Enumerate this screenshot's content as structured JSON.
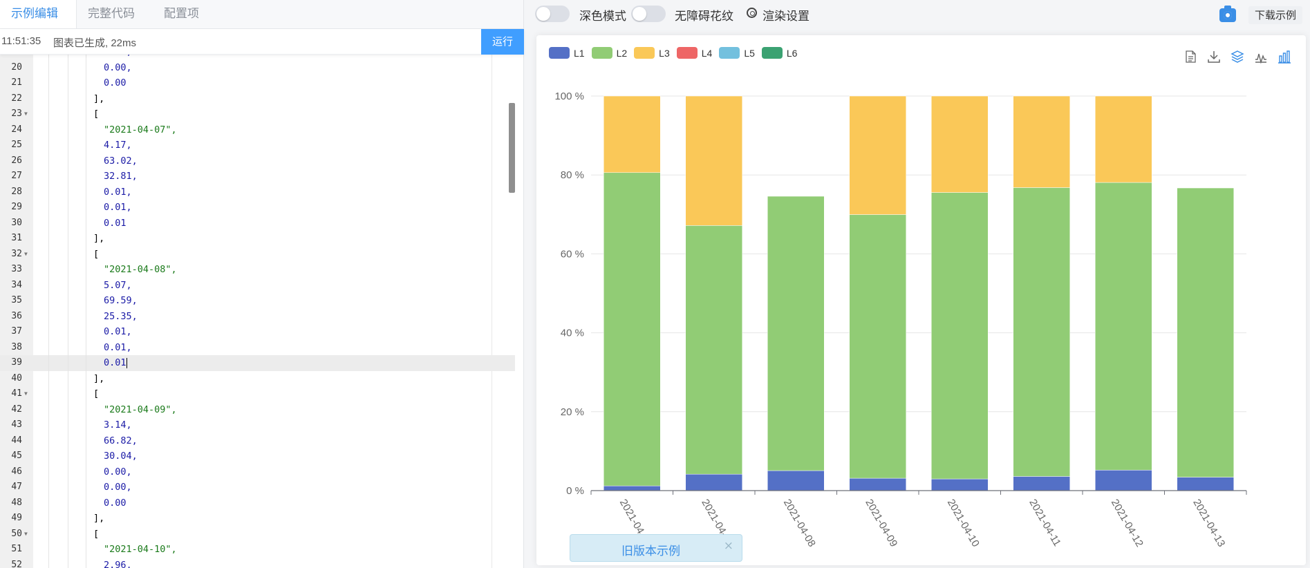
{
  "tabs": [
    {
      "label": "示例编辑",
      "active": true
    },
    {
      "label": "完整代码",
      "active": false
    },
    {
      "label": "配置项",
      "active": false
    }
  ],
  "status": {
    "time": "11:51:35",
    "message": "图表已生成, 22ms"
  },
  "run_label": "运行",
  "editor": {
    "lines": [
      {
        "n": "19",
        "text": "0.00,",
        "kind": "num",
        "indent": 2
      },
      {
        "n": "20",
        "text": "0.00,",
        "kind": "num",
        "indent": 2
      },
      {
        "n": "21",
        "text": "0.00",
        "kind": "num",
        "indent": 2
      },
      {
        "n": "22",
        "text": "],",
        "kind": "punct",
        "indent": 1
      },
      {
        "n": "23",
        "text": "[",
        "kind": "punct",
        "indent": 1,
        "fold": true
      },
      {
        "n": "24",
        "text": "\"2021-04-07\",",
        "kind": "str",
        "indent": 2
      },
      {
        "n": "25",
        "text": "4.17,",
        "kind": "num",
        "indent": 2
      },
      {
        "n": "26",
        "text": "63.02,",
        "kind": "num",
        "indent": 2
      },
      {
        "n": "27",
        "text": "32.81,",
        "kind": "num",
        "indent": 2
      },
      {
        "n": "28",
        "text": "0.01,",
        "kind": "num",
        "indent": 2
      },
      {
        "n": "29",
        "text": "0.01,",
        "kind": "num",
        "indent": 2
      },
      {
        "n": "30",
        "text": "0.01",
        "kind": "num",
        "indent": 2
      },
      {
        "n": "31",
        "text": "],",
        "kind": "punct",
        "indent": 1
      },
      {
        "n": "32",
        "text": "[",
        "kind": "punct",
        "indent": 1,
        "fold": true
      },
      {
        "n": "33",
        "text": "\"2021-04-08\",",
        "kind": "str",
        "indent": 2
      },
      {
        "n": "34",
        "text": "5.07,",
        "kind": "num",
        "indent": 2
      },
      {
        "n": "35",
        "text": "69.59,",
        "kind": "num",
        "indent": 2
      },
      {
        "n": "36",
        "text": "25.35,",
        "kind": "num",
        "indent": 2
      },
      {
        "n": "37",
        "text": "0.01,",
        "kind": "num",
        "indent": 2
      },
      {
        "n": "38",
        "text": "0.01,",
        "kind": "num",
        "indent": 2
      },
      {
        "n": "39",
        "text": "0.01",
        "kind": "num",
        "indent": 2,
        "active": true
      },
      {
        "n": "40",
        "text": "],",
        "kind": "punct",
        "indent": 1
      },
      {
        "n": "41",
        "text": "[",
        "kind": "punct",
        "indent": 1,
        "fold": true
      },
      {
        "n": "42",
        "text": "\"2021-04-09\",",
        "kind": "str",
        "indent": 2
      },
      {
        "n": "43",
        "text": "3.14,",
        "kind": "num",
        "indent": 2
      },
      {
        "n": "44",
        "text": "66.82,",
        "kind": "num",
        "indent": 2
      },
      {
        "n": "45",
        "text": "30.04,",
        "kind": "num",
        "indent": 2
      },
      {
        "n": "46",
        "text": "0.00,",
        "kind": "num",
        "indent": 2
      },
      {
        "n": "47",
        "text": "0.00,",
        "kind": "num",
        "indent": 2
      },
      {
        "n": "48",
        "text": "0.00",
        "kind": "num",
        "indent": 2
      },
      {
        "n": "49",
        "text": "],",
        "kind": "punct",
        "indent": 1
      },
      {
        "n": "50",
        "text": "[",
        "kind": "punct",
        "indent": 1,
        "fold": true
      },
      {
        "n": "51",
        "text": "\"2021-04-10\",",
        "kind": "str",
        "indent": 2
      },
      {
        "n": "52",
        "text": "2.96,",
        "kind": "num",
        "indent": 2
      }
    ]
  },
  "toolbar": {
    "dark_mode_label": "深色模式",
    "aria_label": "无障碍花纹",
    "render_label": "渲染设置",
    "download_label": "下载示例"
  },
  "icons": {
    "camera": "camera-icon",
    "gear": "gear-icon",
    "data_view": "data-view-icon",
    "save": "save-image-icon",
    "stack": "stack-icon",
    "line": "line-chart-icon",
    "bar": "bar-chart-icon"
  },
  "colors": {
    "L1": "#5470c6",
    "L2": "#91cc75",
    "L3": "#fac858",
    "L4": "#ee6666",
    "L5": "#73c0de",
    "L6": "#3ba272",
    "accent": "#409eff"
  },
  "chart_data": {
    "type": "bar",
    "stacked": true,
    "legend_position": "top-left",
    "categories": [
      "2021-04-06",
      "2021-04-07",
      "2021-04-08",
      "2021-04-09",
      "2021-04-10",
      "2021-04-11",
      "2021-04-12",
      "2021-04-13"
    ],
    "category_labels_visible": [
      "2021-04",
      "2021-04-0",
      "2021-04-08",
      "2021-04-09",
      "2021-04-10",
      "2021-04-11",
      "2021-04-12",
      "2021-04-13"
    ],
    "yticks": [
      "0 %",
      "20 %",
      "40 %",
      "60 %",
      "80 %",
      "100 %"
    ],
    "ylim": [
      0,
      100
    ],
    "series": [
      {
        "name": "L1",
        "values": [
          1.2,
          4.17,
          5.07,
          3.14,
          2.96,
          3.6,
          5.2,
          3.4
        ]
      },
      {
        "name": "L2",
        "values": [
          79.4,
          63.02,
          69.59,
          66.82,
          72.6,
          73.2,
          72.9,
          73.3
        ]
      },
      {
        "name": "L3",
        "values": [
          19.4,
          32.81,
          25.35,
          30.04,
          24.44,
          23.2,
          21.9,
          23.3
        ]
      },
      {
        "name": "L4",
        "values": [
          0,
          0.01,
          0.01,
          0,
          0,
          0,
          0,
          0
        ]
      },
      {
        "name": "L5",
        "values": [
          0,
          0.01,
          0.01,
          0,
          0,
          0,
          0,
          0
        ]
      },
      {
        "name": "L6",
        "values": [
          0,
          0.01,
          0.01,
          0,
          0,
          0,
          0,
          0
        ]
      }
    ],
    "visible_top_cut": [
      100,
      100,
      74.6,
      100,
      100,
      100,
      100,
      76.7
    ]
  },
  "banner": {
    "text": "旧版本示例",
    "close": "×"
  }
}
